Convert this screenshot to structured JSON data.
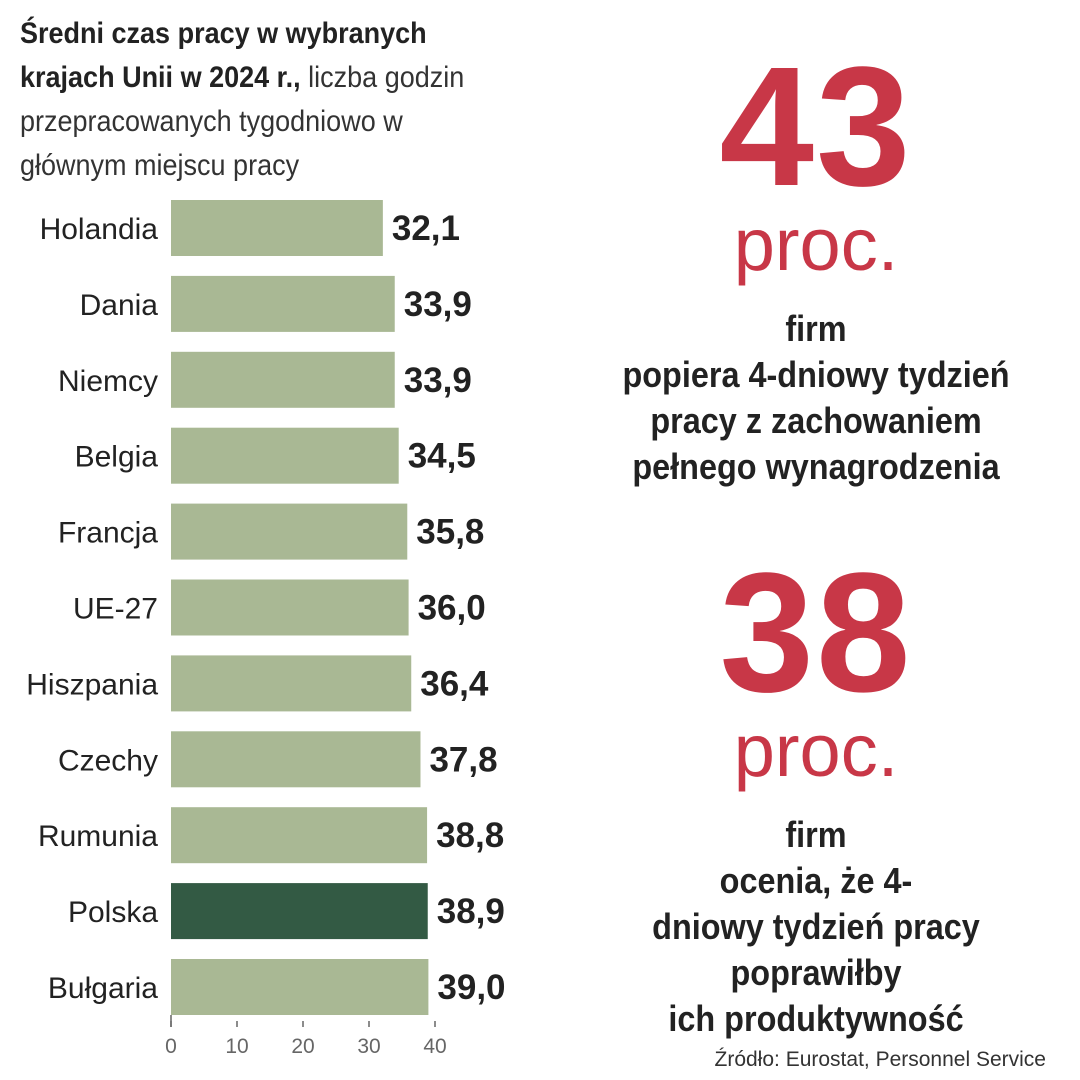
{
  "title": {
    "bold": "Średni czas pracy w wybranych krajach Unii w 2024 r.,",
    "regular": "liczba godzin przepracowanych tygodniowo w głównym miejscu pracy"
  },
  "chart_data": {
    "type": "bar",
    "orientation": "horizontal",
    "categories": [
      "Holandia",
      "Dania",
      "Niemcy",
      "Belgia",
      "Francja",
      "UE-27",
      "Hiszpania",
      "Czechy",
      "Rumunia",
      "Polska",
      "Bułgaria"
    ],
    "values": [
      32.1,
      33.9,
      33.9,
      34.5,
      35.8,
      36.0,
      36.4,
      37.8,
      38.8,
      38.9,
      39.0
    ],
    "value_labels": [
      "32,1",
      "33,9",
      "33,9",
      "34,5",
      "35,8",
      "36,0",
      "36,4",
      "37,8",
      "38,8",
      "38,9",
      "39,0"
    ],
    "highlight_category": "Polska",
    "xlim": [
      0,
      40
    ],
    "xticks": [
      0,
      10,
      20,
      30,
      40
    ],
    "grid": false,
    "legend": "none"
  },
  "stats": [
    {
      "number": "43",
      "unit": "proc.",
      "lines": [
        "firm",
        "popiera 4-dniowy tydzień",
        "pracy z zachowaniem",
        "pełnego wynagrodzenia"
      ]
    },
    {
      "number": "38",
      "unit": "proc.",
      "lines": [
        "firm",
        "ocenia, że 4-",
        "dniowy tydzień pracy",
        "poprawiłby",
        "ich produktywność"
      ]
    }
  ],
  "source": "Źródło: Eurostat, Personnel Service",
  "colors": {
    "bar": "#a9b894",
    "bar_highlight": "#335a44",
    "accent": "#c83747",
    "text": "#222222",
    "axis": "#666666"
  }
}
